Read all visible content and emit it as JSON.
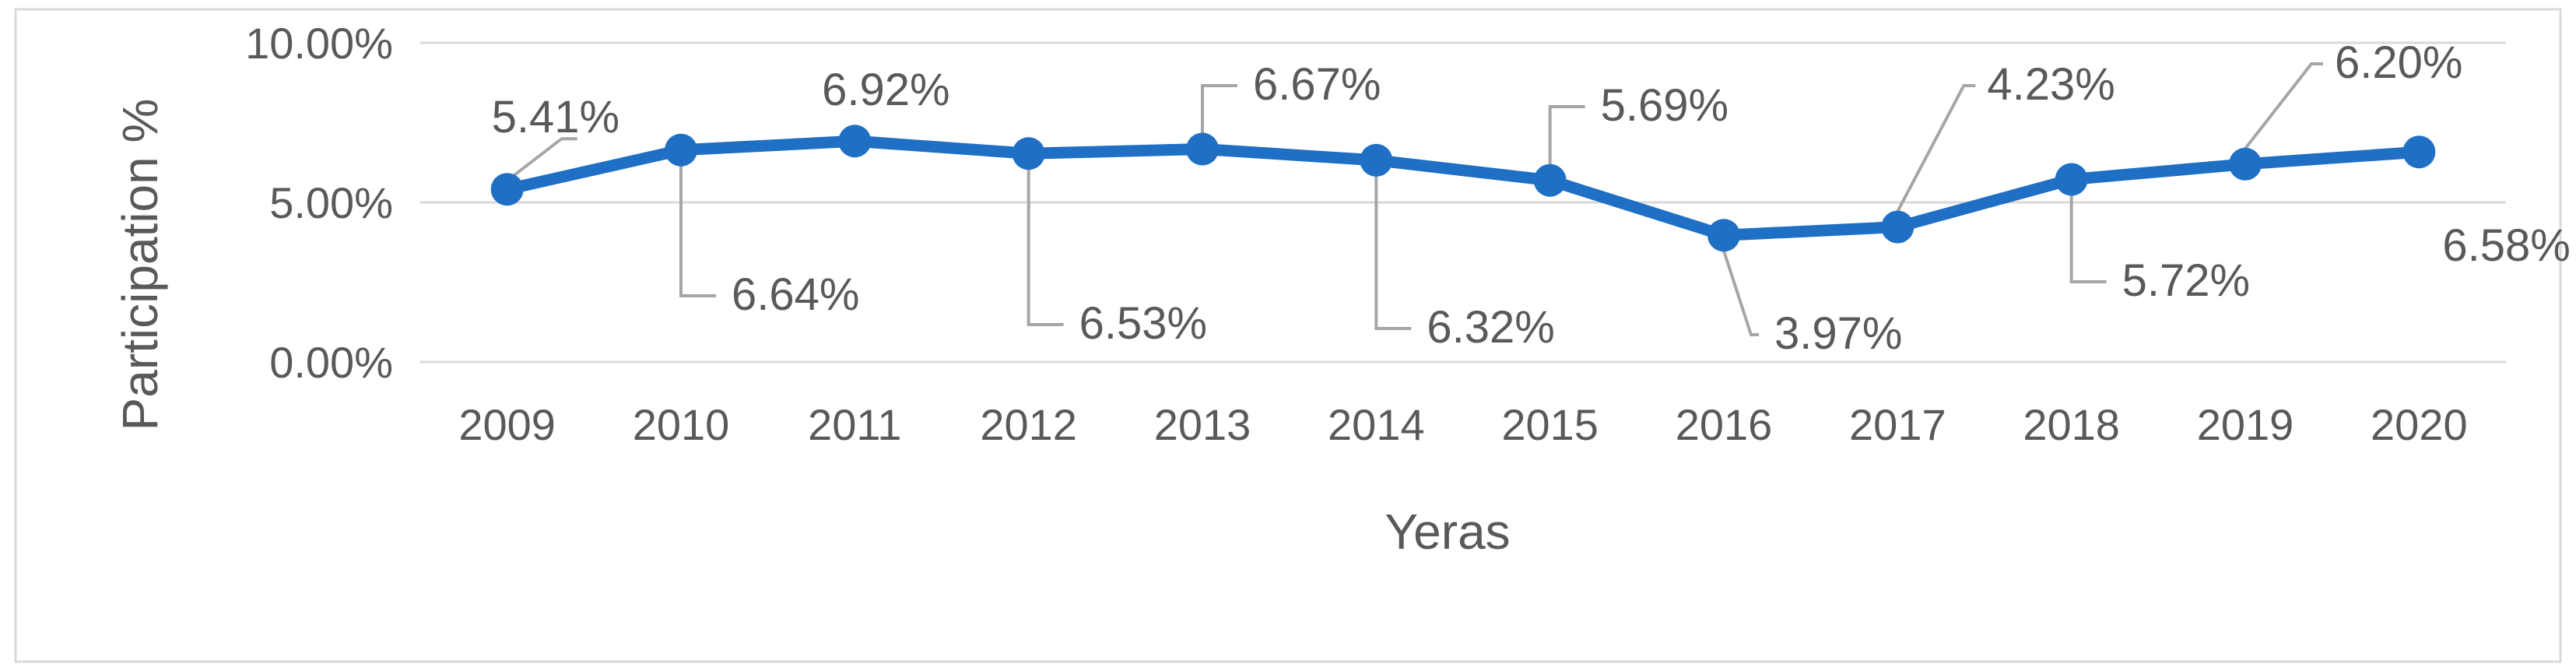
{
  "chart_data": {
    "type": "line",
    "title": "",
    "xlabel": "Yeras",
    "ylabel": "Participation %",
    "categories": [
      "2009",
      "2010",
      "2011",
      "2012",
      "2013",
      "2014",
      "2015",
      "2016",
      "2017",
      "2018",
      "2019",
      "2020"
    ],
    "series": [
      {
        "values": [
          5.41,
          6.64,
          6.92,
          6.53,
          6.67,
          6.32,
          5.69,
          3.97,
          4.23,
          5.72,
          6.2,
          6.58
        ],
        "data_labels": [
          "5.41%",
          "6.64%",
          "6.92%",
          "6.53%",
          "6.67%",
          "6.32%",
          "5.69%",
          "3.97%",
          "4.23%",
          "5.72%",
          "6.20%",
          "6.58%"
        ]
      }
    ],
    "ylim": [
      0,
      10
    ],
    "y_ticks": [
      0,
      5,
      10
    ],
    "y_tick_labels": [
      "0.00%",
      "5.00%",
      "10.00%"
    ],
    "y_unit": "%",
    "grid": "horizontal",
    "legend": "none",
    "colors": {
      "line": "#1f6fc5",
      "gridline": "#d9d9d9",
      "text": "#595959",
      "leader": "#a6a6a6",
      "border": "#d9d9d9"
    }
  }
}
